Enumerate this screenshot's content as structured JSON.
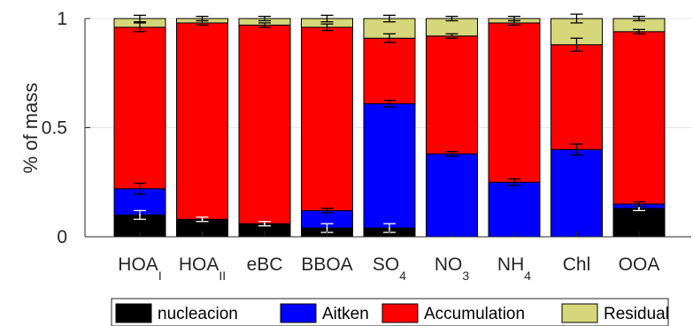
{
  "chart_data": {
    "type": "bar",
    "stacked": true,
    "title": "",
    "xlabel": "",
    "ylabel": "% of mass",
    "ylim": [
      0,
      1
    ],
    "yticks": [
      {
        "value": 0,
        "label": "0"
      },
      {
        "value": 0.5,
        "label": "0.5"
      },
      {
        "value": 1,
        "label": "1"
      }
    ],
    "grid": "horizontal",
    "legend_position": "bottom",
    "categories": [
      {
        "main": "HOA",
        "sub": "I"
      },
      {
        "main": "HOA",
        "sub": "II"
      },
      {
        "main": "eBC",
        "sub": ""
      },
      {
        "main": "BBOA",
        "sub": ""
      },
      {
        "main": "SO",
        "sub": "4"
      },
      {
        "main": "NO",
        "sub": "3"
      },
      {
        "main": "NH",
        "sub": "4"
      },
      {
        "main": "Chl",
        "sub": ""
      },
      {
        "main": "OOA",
        "sub": ""
      }
    ],
    "series": [
      {
        "name": "nucleacion",
        "color": "#000000",
        "values": [
          0.1,
          0.08,
          0.06,
          0.04,
          0.04,
          0.0,
          0.0,
          0.0,
          0.13
        ],
        "err": [
          0.02,
          0.01,
          0.01,
          0.02,
          0.02,
          0.0,
          0.0,
          0.0,
          0.01
        ],
        "err_color": "#ffffff"
      },
      {
        "name": "Aitken",
        "color": "#0000ff",
        "values": [
          0.12,
          0.0,
          0.0,
          0.08,
          0.57,
          0.38,
          0.25,
          0.4,
          0.02
        ],
        "err": [
          0.025,
          0.0,
          0.0,
          0.01,
          0.015,
          0.01,
          0.015,
          0.025,
          0.01
        ],
        "err_color": "#000000"
      },
      {
        "name": "Accumulation",
        "color": "#ff0000",
        "values": [
          0.74,
          0.9,
          0.91,
          0.84,
          0.3,
          0.54,
          0.73,
          0.48,
          0.79
        ],
        "err": [
          0.02,
          0.01,
          0.01,
          0.015,
          0.02,
          0.01,
          0.01,
          0.03,
          0.01
        ],
        "err_color": "#000000"
      },
      {
        "name": "Residual",
        "color": "#d6d67a",
        "values": [
          0.04,
          0.02,
          0.03,
          0.04,
          0.09,
          0.08,
          0.02,
          0.12,
          0.06
        ],
        "err": [
          0.015,
          0.01,
          0.01,
          0.015,
          0.015,
          0.01,
          0.01,
          0.02,
          0.01
        ],
        "err_color": "#000000"
      }
    ]
  }
}
